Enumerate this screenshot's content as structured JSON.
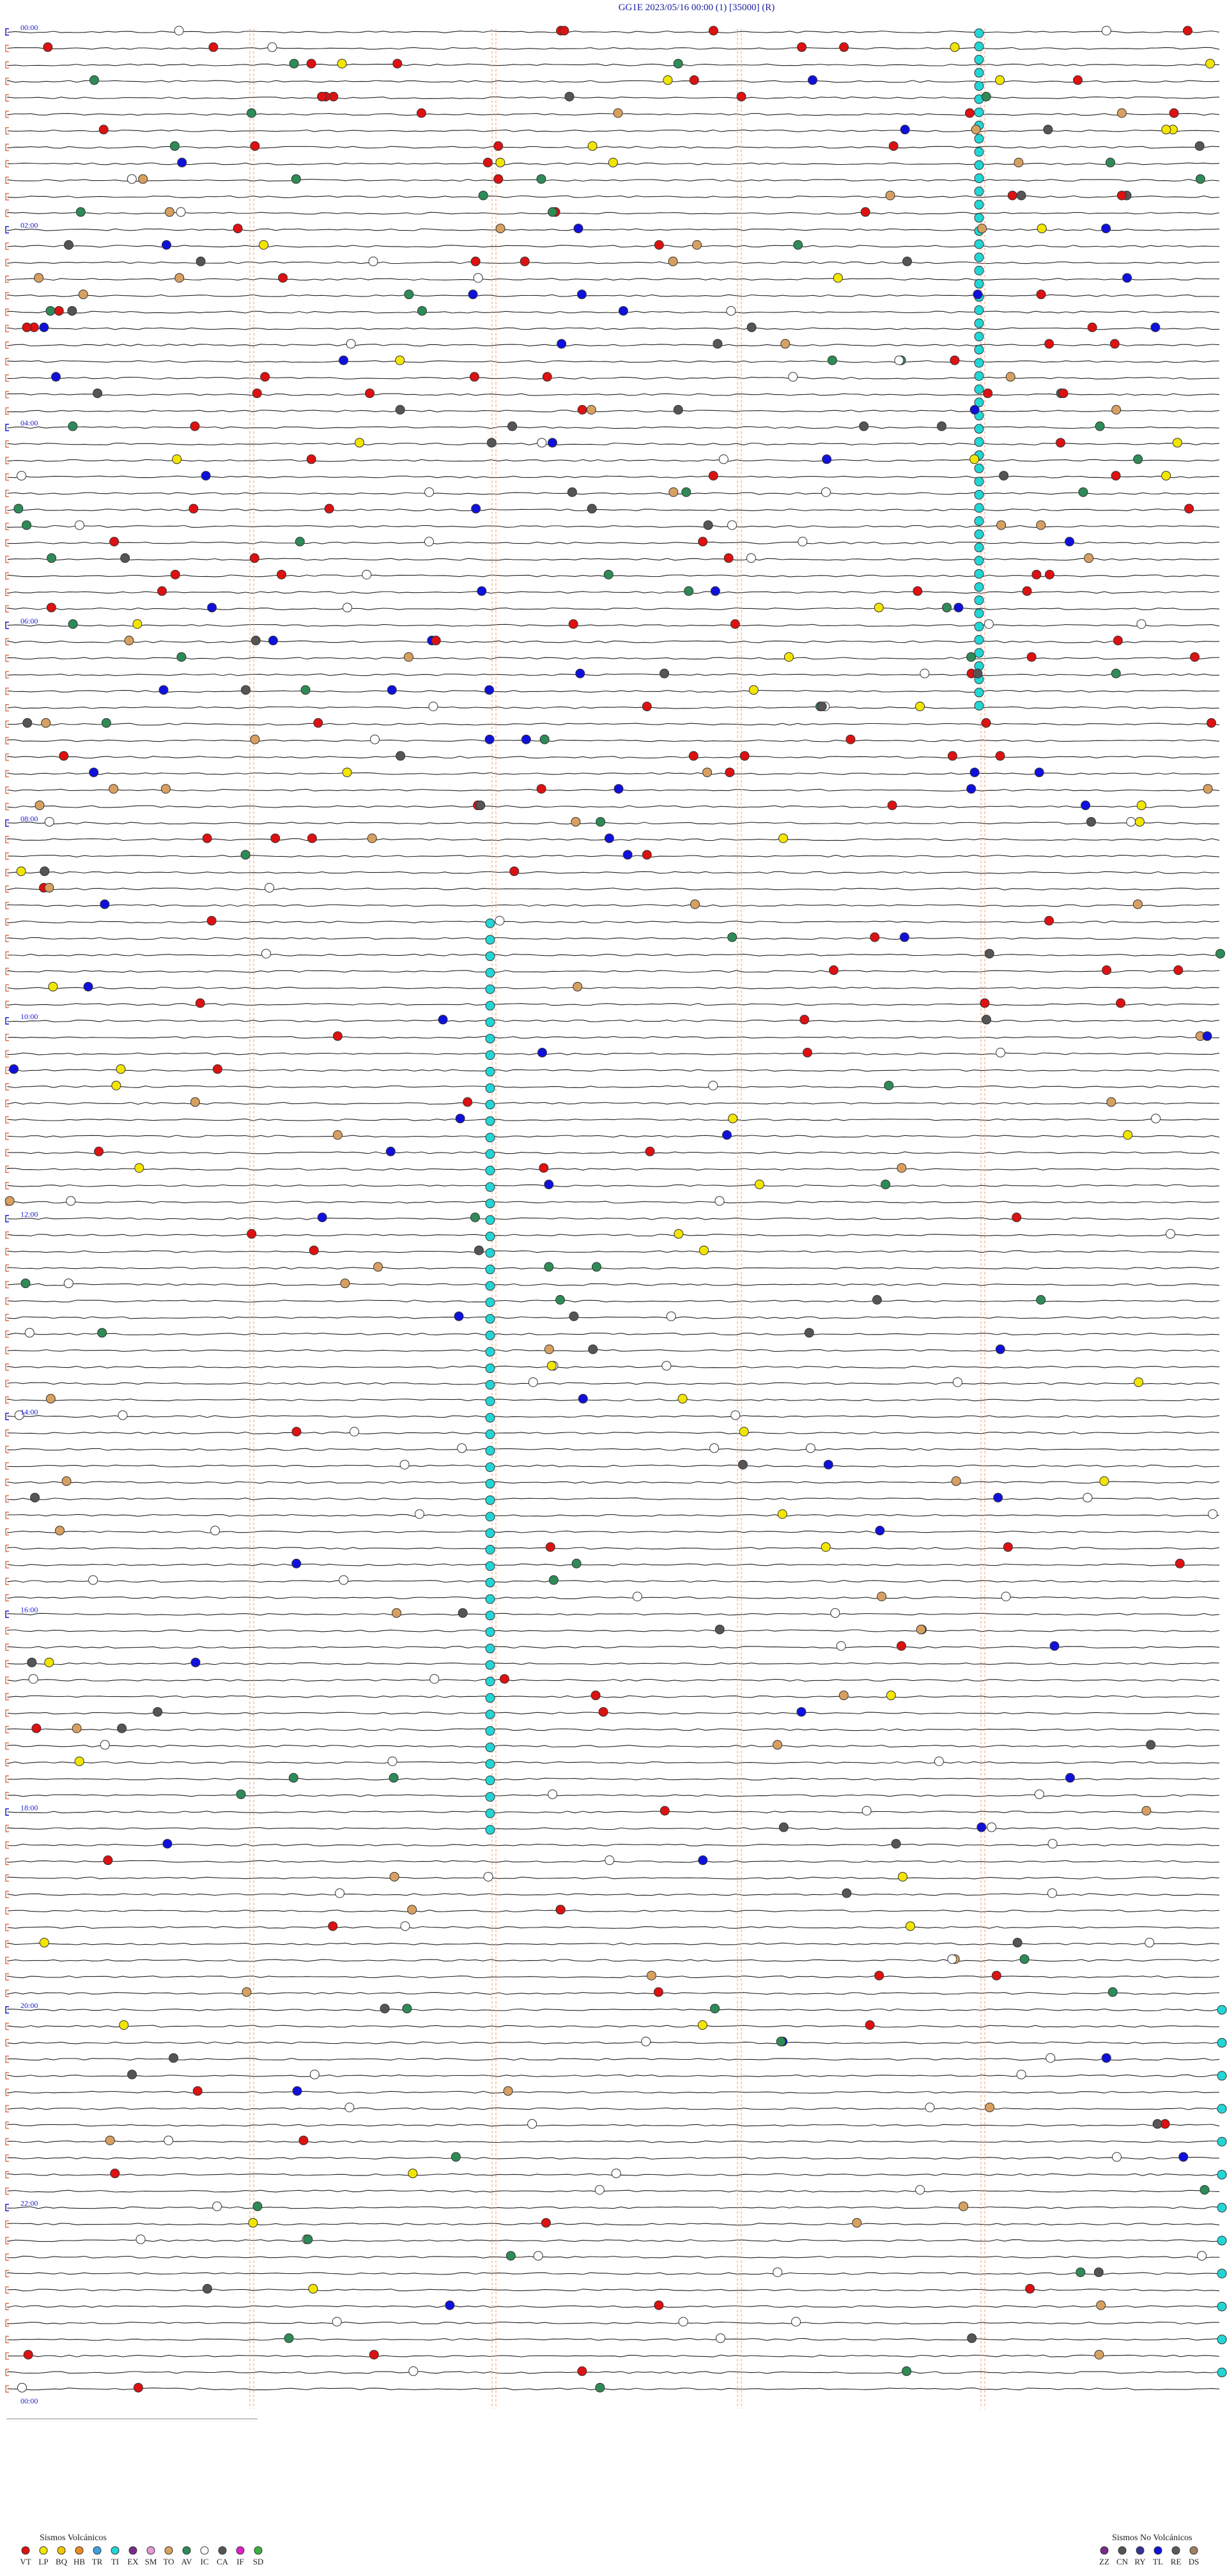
{
  "header": {
    "title": "GG1E     2023/05/16 00:00     (1)     [35000]   (R)"
  },
  "hour_labels": [
    "00:00",
    "02:00",
    "04:00",
    "06:00",
    "08:00",
    "10:00",
    "12:00",
    "14:00",
    "16:00",
    "18:00",
    "20:00",
    "22:00",
    "00:00"
  ],
  "legend": {
    "volcanic": {
      "title": "Sismos Volcánicos",
      "items": [
        {
          "code": "VT",
          "color": "#dd1111"
        },
        {
          "code": "LP",
          "color": "#f2e600"
        },
        {
          "code": "BQ",
          "color": "#f5c400"
        },
        {
          "code": "HB",
          "color": "#f08c1e"
        },
        {
          "code": "TR",
          "color": "#3fa0e0"
        },
        {
          "code": "TI",
          "color": "#22d6d6"
        },
        {
          "code": "EX",
          "color": "#7a2a8a"
        },
        {
          "code": "SM",
          "color": "#e59ad6"
        },
        {
          "code": "TO",
          "color": "#d8a060"
        },
        {
          "code": "AV",
          "color": "#2e8b57"
        },
        {
          "code": "IC",
          "color": "#ffffff"
        },
        {
          "code": "CA",
          "color": "#555555"
        },
        {
          "code": "IF",
          "color": "#e01fc8"
        },
        {
          "code": "SD",
          "color": "#3cb043"
        }
      ]
    },
    "non_volcanic": {
      "title": "Sismos No Volcánicos",
      "items": [
        {
          "code": "ZZ",
          "color": "#7a2a8a"
        },
        {
          "code": "CN",
          "color": "#555555"
        },
        {
          "code": "RY",
          "color": "#333399"
        },
        {
          "code": "TL",
          "color": "#1010dd"
        },
        {
          "code": "RE",
          "color": "#5a5a5a"
        },
        {
          "code": "DS",
          "color": "#a08060"
        }
      ]
    }
  }
}
